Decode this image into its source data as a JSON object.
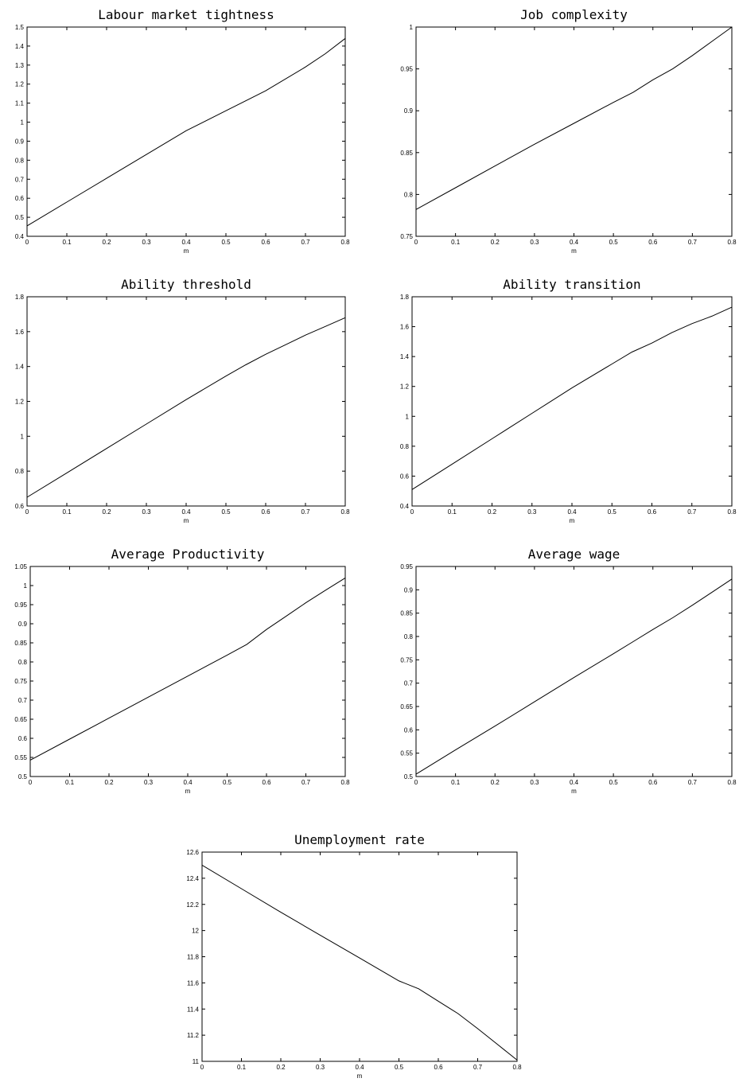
{
  "chart_data": [
    {
      "type": "line",
      "title": "Labour market tightness",
      "xlabel": "m",
      "ylabel": "",
      "xlim": [
        0,
        0.8
      ],
      "ylim": [
        0.4,
        1.5
      ],
      "xticks": [
        "0",
        "0.1",
        "0.2",
        "0.3",
        "0.4",
        "0.5",
        "0.6",
        "0.7",
        "0.8"
      ],
      "yticks": [
        "0.4",
        "0.5",
        "0.6",
        "0.7",
        "0.8",
        "0.9",
        "1",
        "1.1",
        "1.2",
        "1.3",
        "1.4",
        "1.5"
      ],
      "grid": false,
      "series": [
        {
          "x": [
            0,
            0.1,
            0.2,
            0.3,
            0.4,
            0.5,
            0.6,
            0.7,
            0.75,
            0.8
          ],
          "y": [
            0.455,
            0.58,
            0.705,
            0.83,
            0.955,
            1.06,
            1.165,
            1.29,
            1.36,
            1.44
          ]
        }
      ]
    },
    {
      "type": "line",
      "title": "Job complexity",
      "xlabel": "m",
      "ylabel": "",
      "xlim": [
        0,
        0.8
      ],
      "ylim": [
        0.75,
        1
      ],
      "xticks": [
        "0",
        "0.1",
        "0.2",
        "0.3",
        "0.4",
        "0.5",
        "0.6",
        "0.7",
        "0.8"
      ],
      "yticks": [
        "0.75",
        "0.8",
        "0.85",
        "0.9",
        "0.95",
        "1"
      ],
      "grid": false,
      "series": [
        {
          "x": [
            0,
            0.1,
            0.2,
            0.3,
            0.4,
            0.5,
            0.55,
            0.6,
            0.65,
            0.7,
            0.75,
            0.8
          ],
          "y": [
            0.782,
            0.808,
            0.834,
            0.86,
            0.885,
            0.91,
            0.922,
            0.937,
            0.95,
            0.966,
            0.983,
            1.0
          ]
        }
      ]
    },
    {
      "type": "line",
      "title": "Ability threshold",
      "xlabel": "m",
      "ylabel": "",
      "xlim": [
        0,
        0.8
      ],
      "ylim": [
        0.6,
        1.8
      ],
      "xticks": [
        "0",
        "0.1",
        "0.2",
        "0.3",
        "0.4",
        "0.5",
        "0.6",
        "0.7",
        "0.8"
      ],
      "yticks": [
        "0.6",
        "0.8",
        "1",
        "1.2",
        "1.4",
        "1.6",
        "1.8"
      ],
      "grid": false,
      "series": [
        {
          "x": [
            0,
            0.1,
            0.2,
            0.3,
            0.4,
            0.5,
            0.55,
            0.6,
            0.65,
            0.7,
            0.75,
            0.8
          ],
          "y": [
            0.65,
            0.79,
            0.93,
            1.07,
            1.21,
            1.345,
            1.41,
            1.47,
            1.525,
            1.58,
            1.63,
            1.68
          ]
        }
      ]
    },
    {
      "type": "line",
      "title": "Ability transition",
      "xlabel": "m",
      "ylabel": "",
      "xlim": [
        0,
        0.8
      ],
      "ylim": [
        0.4,
        1.8
      ],
      "xticks": [
        "0",
        "0.1",
        "0.2",
        "0.3",
        "0.4",
        "0.5",
        "0.6",
        "0.7",
        "0.8"
      ],
      "yticks": [
        "0.4",
        "0.6",
        "0.8",
        "1",
        "1.2",
        "1.4",
        "1.6",
        "1.8"
      ],
      "grid": false,
      "series": [
        {
          "x": [
            0,
            0.1,
            0.2,
            0.3,
            0.4,
            0.5,
            0.55,
            0.6,
            0.65,
            0.7,
            0.75,
            0.8
          ],
          "y": [
            0.51,
            0.68,
            0.85,
            1.02,
            1.19,
            1.35,
            1.43,
            1.49,
            1.56,
            1.62,
            1.67,
            1.73
          ]
        }
      ]
    },
    {
      "type": "line",
      "title": "Average Productivity",
      "xlabel": "m",
      "ylabel": "",
      "xlim": [
        0,
        0.8
      ],
      "ylim": [
        0.5,
        1.05
      ],
      "xticks": [
        "0",
        "0.1",
        "0.2",
        "0.3",
        "0.4",
        "0.5",
        "0.6",
        "0.7",
        "0.8"
      ],
      "yticks": [
        "0.5",
        "0.55",
        "0.6",
        "0.65",
        "0.7",
        "0.75",
        "0.8",
        "0.85",
        "0.9",
        "0.95",
        "1",
        "1.05"
      ],
      "grid": false,
      "series": [
        {
          "x": [
            0,
            0.1,
            0.2,
            0.3,
            0.4,
            0.5,
            0.55,
            0.6,
            0.65,
            0.7,
            0.75,
            0.8
          ],
          "y": [
            0.543,
            0.598,
            0.653,
            0.708,
            0.763,
            0.818,
            0.846,
            0.885,
            0.92,
            0.955,
            0.988,
            1.02
          ]
        }
      ]
    },
    {
      "type": "line",
      "title": "Average wage",
      "xlabel": "m",
      "ylabel": "",
      "xlim": [
        0,
        0.8
      ],
      "ylim": [
        0.5,
        0.95
      ],
      "xticks": [
        "0",
        "0.1",
        "0.2",
        "0.3",
        "0.4",
        "0.5",
        "0.6",
        "0.7",
        "0.8"
      ],
      "yticks": [
        "0.5",
        "0.55",
        "0.6",
        "0.65",
        "0.7",
        "0.75",
        "0.8",
        "0.85",
        "0.9",
        "0.95"
      ],
      "grid": false,
      "series": [
        {
          "x": [
            0,
            0.1,
            0.2,
            0.3,
            0.4,
            0.5,
            0.55,
            0.6,
            0.65,
            0.7,
            0.75,
            0.8
          ],
          "y": [
            0.505,
            0.557,
            0.608,
            0.66,
            0.712,
            0.763,
            0.789,
            0.815,
            0.84,
            0.867,
            0.895,
            0.923
          ]
        }
      ]
    },
    {
      "type": "line",
      "title": "Unemployment rate",
      "xlabel": "m",
      "ylabel": "",
      "xlim": [
        0,
        0.8
      ],
      "ylim": [
        11,
        12.6
      ],
      "xticks": [
        "0",
        "0.1",
        "0.2",
        "0.3",
        "0.4",
        "0.5",
        "0.6",
        "0.7",
        "0.8"
      ],
      "yticks": [
        "11",
        "11.2",
        "11.4",
        "11.6",
        "11.8",
        "12",
        "12.2",
        "12.4",
        "12.6"
      ],
      "grid": false,
      "series": [
        {
          "x": [
            0,
            0.1,
            0.2,
            0.3,
            0.4,
            0.5,
            0.55,
            0.6,
            0.65,
            0.7,
            0.75,
            0.8
          ],
          "y": [
            12.5,
            12.32,
            12.14,
            11.965,
            11.79,
            11.615,
            11.555,
            11.46,
            11.365,
            11.25,
            11.13,
            11.01
          ]
        }
      ]
    }
  ]
}
